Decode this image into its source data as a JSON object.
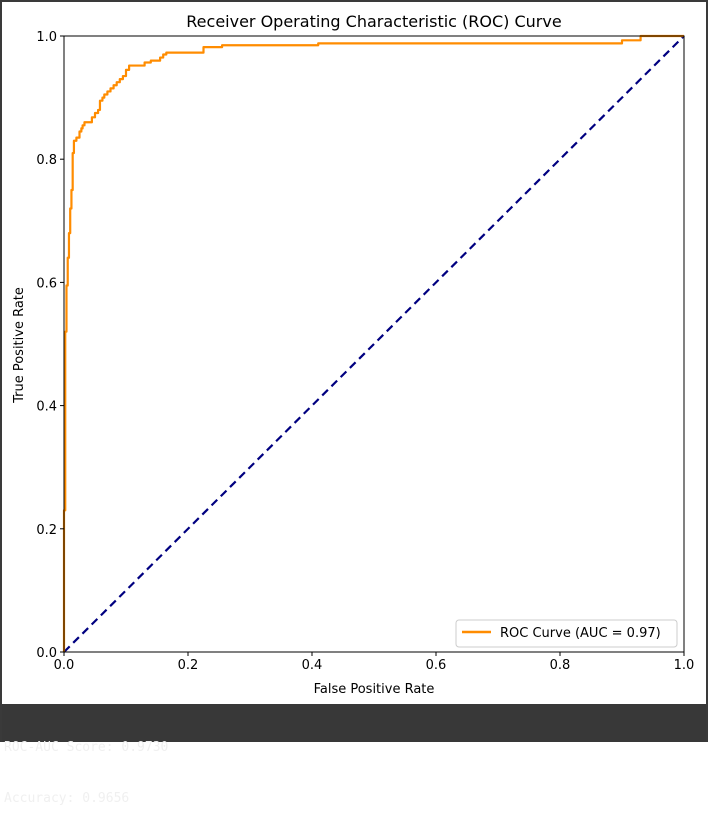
{
  "chart_data": {
    "type": "line",
    "title": "Receiver Operating Characteristic (ROC) Curve",
    "xlabel": "False Positive Rate",
    "ylabel": "True Positive Rate",
    "xlim": [
      0.0,
      1.0
    ],
    "ylim": [
      0.0,
      1.0
    ],
    "xticks": [
      "0.0",
      "0.2",
      "0.4",
      "0.6",
      "0.8",
      "1.0"
    ],
    "yticks": [
      "0.0",
      "0.2",
      "0.4",
      "0.6",
      "0.8",
      "1.0"
    ],
    "grid": false,
    "legend_position": "lower-right",
    "series": [
      {
        "name": "ROC Curve (AUC = 0.97)",
        "color": "#ff8c00",
        "style": "solid",
        "x": [
          0.0,
          0.0,
          0.002,
          0.002,
          0.004,
          0.004,
          0.006,
          0.006,
          0.008,
          0.008,
          0.01,
          0.01,
          0.012,
          0.012,
          0.014,
          0.014,
          0.016,
          0.016,
          0.018,
          0.018,
          0.02,
          0.02,
          0.025,
          0.025,
          0.028,
          0.028,
          0.03,
          0.03,
          0.033,
          0.033,
          0.035,
          0.035,
          0.045,
          0.045,
          0.05,
          0.05,
          0.055,
          0.055,
          0.058,
          0.058,
          0.062,
          0.062,
          0.065,
          0.065,
          0.07,
          0.07,
          0.075,
          0.075,
          0.08,
          0.08,
          0.085,
          0.085,
          0.09,
          0.09,
          0.095,
          0.095,
          0.1,
          0.1,
          0.105,
          0.105,
          0.13,
          0.13,
          0.14,
          0.14,
          0.155,
          0.155,
          0.16,
          0.16,
          0.165,
          0.165,
          0.225,
          0.225,
          0.255,
          0.255,
          0.41,
          0.41,
          0.9,
          0.9,
          0.93,
          0.93,
          1.0
        ],
        "y": [
          0.0,
          0.23,
          0.23,
          0.52,
          0.52,
          0.595,
          0.595,
          0.64,
          0.64,
          0.68,
          0.68,
          0.72,
          0.72,
          0.75,
          0.75,
          0.81,
          0.81,
          0.83,
          0.83,
          0.83,
          0.83,
          0.835,
          0.835,
          0.845,
          0.845,
          0.85,
          0.85,
          0.855,
          0.855,
          0.86,
          0.86,
          0.86,
          0.86,
          0.868,
          0.868,
          0.875,
          0.875,
          0.88,
          0.88,
          0.895,
          0.895,
          0.9,
          0.9,
          0.905,
          0.905,
          0.91,
          0.91,
          0.915,
          0.915,
          0.92,
          0.92,
          0.925,
          0.925,
          0.93,
          0.93,
          0.935,
          0.935,
          0.945,
          0.945,
          0.952,
          0.952,
          0.957,
          0.957,
          0.96,
          0.96,
          0.965,
          0.965,
          0.97,
          0.97,
          0.973,
          0.973,
          0.982,
          0.982,
          0.985,
          0.985,
          0.988,
          0.988,
          0.993,
          0.993,
          1.0,
          1.0
        ]
      },
      {
        "name": "",
        "color": "#000080",
        "style": "dashed",
        "x": [
          0.0,
          1.0
        ],
        "y": [
          0.0,
          1.0
        ]
      }
    ]
  },
  "console": {
    "lines": [
      "ROC-AUC Score: 0.9730",
      "Accuracy: 0.9656"
    ]
  }
}
